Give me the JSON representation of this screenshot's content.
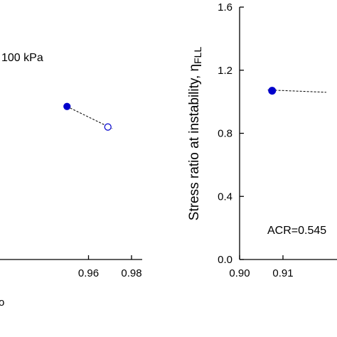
{
  "chart_data": [
    {
      "type": "scatter",
      "xlim": [
        0.9,
        0.98
      ],
      "ylim": [
        0.0,
        1.6
      ],
      "xticks": [
        "0.96",
        "0.98"
      ],
      "annotation": "100 kPa",
      "partial_axis_label": "o",
      "series": [
        {
          "marker": "filled-circle",
          "color": "#0000cc",
          "x": [
            0.95
          ],
          "y": [
            0.97
          ]
        },
        {
          "marker": "open-circle",
          "color": "#0000cc",
          "x": [
            0.969
          ],
          "y": [
            0.84
          ]
        }
      ],
      "trendline": {
        "style": "dashed",
        "x": [
          0.95,
          0.971
        ],
        "y": [
          0.97,
          0.83
        ]
      }
    },
    {
      "type": "scatter",
      "xlim": [
        0.9,
        0.92
      ],
      "ylim": [
        0.0,
        1.6
      ],
      "xticks": [
        "0.90",
        "0.91"
      ],
      "yticks": [
        "0.0",
        "0.4",
        "0.8",
        "1.2",
        "1.6"
      ],
      "ylabel": "Stress ratio at instability, ",
      "ylabel_symbol": "η",
      "ylabel_subscript": "FLL",
      "annotation": "ACR=0.545",
      "series": [
        {
          "marker": "filled-circle",
          "color": "#0000cc",
          "x": [
            0.9075
          ],
          "y": [
            1.07
          ]
        }
      ],
      "trendline": {
        "style": "dashed",
        "x": [
          0.9065,
          0.92
        ],
        "y": [
          1.075,
          1.06
        ]
      }
    }
  ]
}
